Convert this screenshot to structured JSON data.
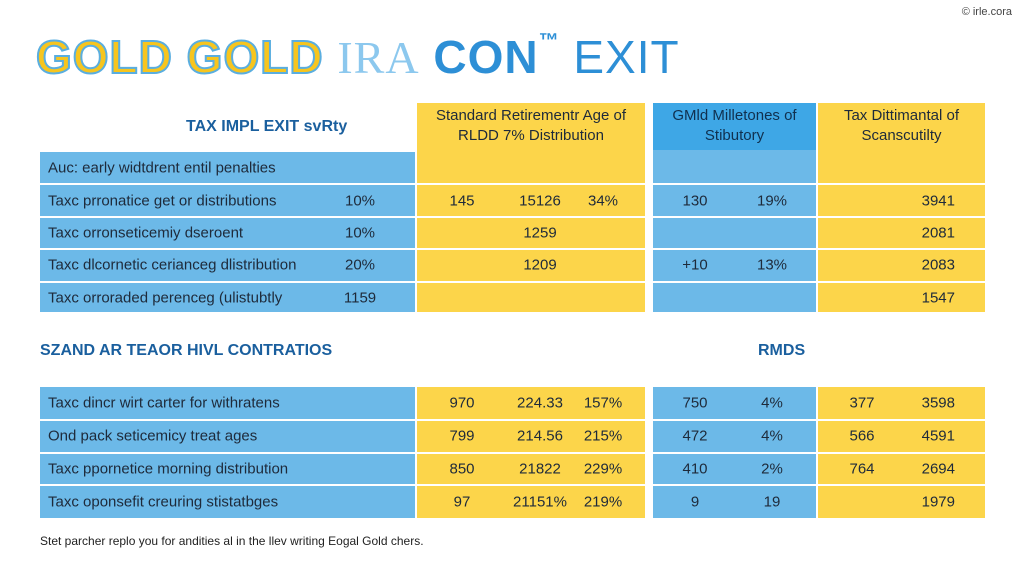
{
  "header": {
    "title_parts": [
      "GOLD GOLD",
      "IRA",
      "CON",
      "™",
      "EXIT"
    ],
    "credit": "© irle.cora"
  },
  "top_table": {
    "title": "TAX IMPL EXIT svRty",
    "column_headers": [
      "Standard Retirementr Age of RLDD 7% Distribution",
      "GMld Milletones of Stibutory",
      "Tax Dittimantal of Scanscutilty"
    ],
    "rows": [
      [
        "Auc: early widtdrent entil penalties",
        null,
        null,
        null,
        null,
        null,
        null,
        null
      ],
      [
        "Taxc prronatice get or distributions",
        "10%",
        "145",
        "15126",
        "34%",
        "130",
        "19%",
        "3941"
      ],
      [
        "Taxc orronseticemiy dseroent",
        "10%",
        null,
        "1259",
        null,
        null,
        null,
        "2081"
      ],
      [
        "Taxc dlcornetic cerianceg dlistribution",
        "20%",
        null,
        "1209",
        null,
        "+10",
        "13%",
        "2083"
      ],
      [
        "Taxc orroraded perenceg (ulistubtly",
        "1159",
        null,
        null,
        null,
        null,
        null,
        "1547"
      ]
    ]
  },
  "section_headings": [
    "SZAND AR TEAOR HIVL CONTRATIOS",
    "RMDS"
  ],
  "bottom_table": {
    "rows": [
      [
        "Taxc dincr wirt carter for withratens",
        "970",
        "224.33",
        "157%",
        "750",
        "4%",
        "377",
        "3598"
      ],
      [
        "Ond pack seticemicy treat ages",
        "799",
        "214.56",
        "215%",
        "472",
        "4%",
        "566",
        "4591"
      ],
      [
        "Taxc ppornetice morning distribution",
        "850",
        "21822",
        "229%",
        "410",
        "2%",
        "764",
        "2694"
      ],
      [
        "Taxc oponsefit creuring stistatbges",
        "97",
        "21151%",
        "219%",
        "9",
        "19",
        null,
        "1979"
      ]
    ]
  },
  "footer": "Stet parcher replo you for andities al in the llev writing Eogal Gold chers."
}
